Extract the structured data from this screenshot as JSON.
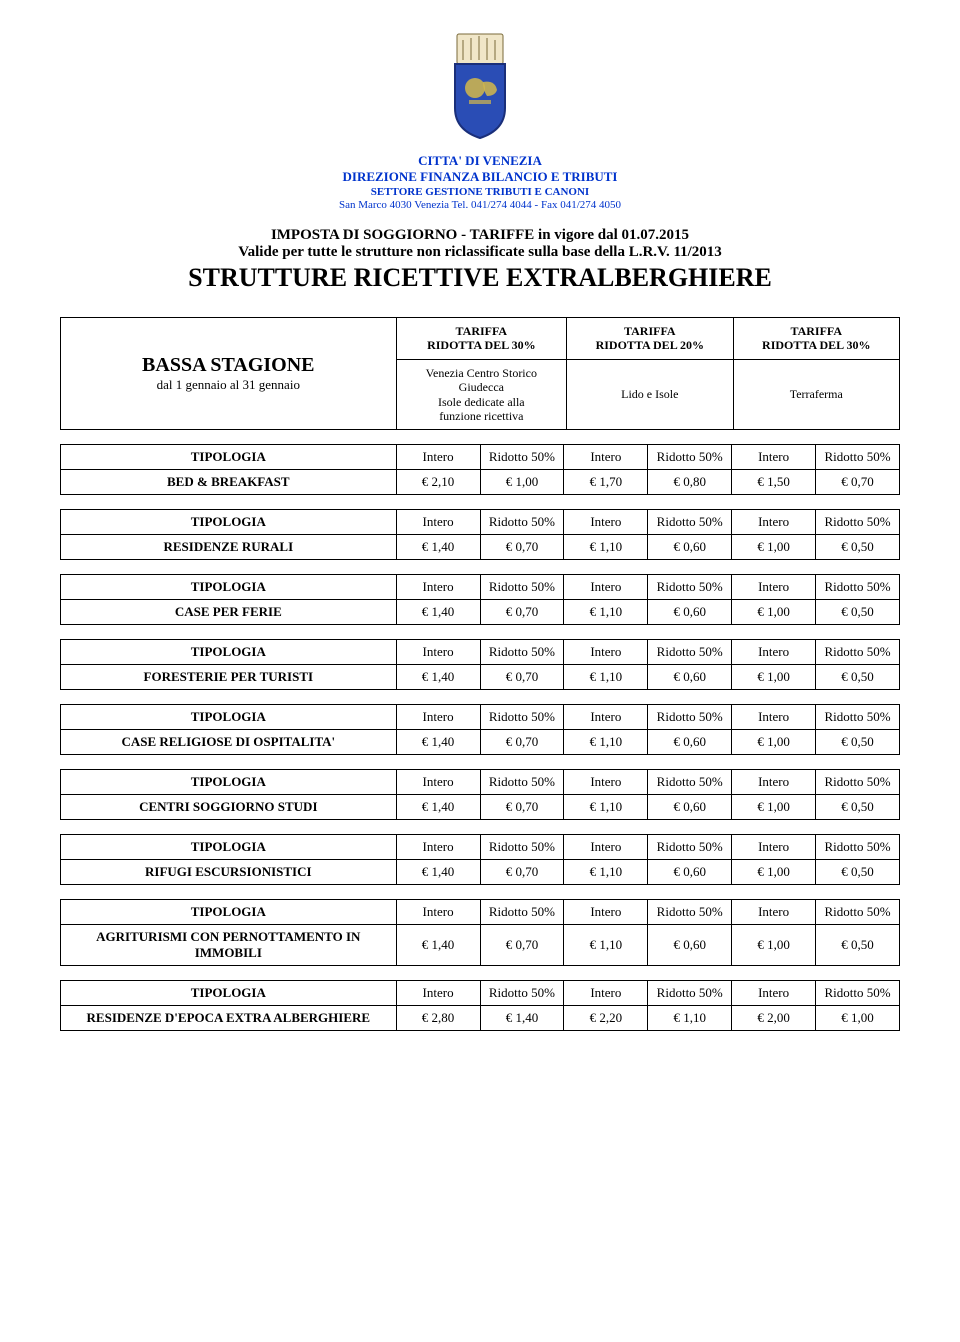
{
  "colors": {
    "header_text": "#0033cc",
    "body_text": "#000000",
    "border": "#000000",
    "background": "#ffffff"
  },
  "header": {
    "line1": "CITTA' DI VENEZIA",
    "line2": "DIREZIONE FINANZA BILANCIO E TRIBUTI",
    "line3": "SETTORE GESTIONE TRIBUTI E CANONI",
    "line4": "San Marco 4030 Venezia  Tel. 041/274 4044 - Fax 041/274 4050"
  },
  "subtitle": {
    "line1": "IMPOSTA DI SOGGIORNO - TARIFFE in vigore dal 01.07.2015",
    "line2": "Valide per tutte le strutture non riclassificate sulla base della L.R.V. 11/2013",
    "doc_title": "STRUTTURE RICETTIVE EXTRALBERGHIERE"
  },
  "season": {
    "title": "BASSA STAGIONE",
    "range": "dal 1 gennaio al 31 gennaio",
    "tariff_label": "TARIFFA",
    "col1_discount": "RIDOTTA DEL 30%",
    "col2_discount": "RIDOTTA DEL 20%",
    "col3_discount": "RIDOTTA DEL 30%",
    "zone1_l1": "Venezia Centro Storico",
    "zone1_l2": "Giudecca",
    "zone1_l3": "Isole dedicate alla",
    "zone1_l4": "funzione ricettiva",
    "zone2": "Lido e Isole",
    "zone3": "Terraferma"
  },
  "columns": {
    "tipologia": "TIPOLOGIA",
    "intero": "Intero",
    "ridotto": "Ridotto 50%"
  },
  "rows": [
    {
      "name": "BED & BREAKFAST",
      "v": [
        "€ 2,10",
        "€ 1,00",
        "€ 1,70",
        "€ 0,80",
        "€ 1,50",
        "€ 0,70"
      ]
    },
    {
      "name": "RESIDENZE RURALI",
      "v": [
        "€ 1,40",
        "€ 0,70",
        "€ 1,10",
        "€ 0,60",
        "€ 1,00",
        "€ 0,50"
      ]
    },
    {
      "name": "CASE PER FERIE",
      "v": [
        "€ 1,40",
        "€ 0,70",
        "€ 1,10",
        "€ 0,60",
        "€ 1,00",
        "€ 0,50"
      ]
    },
    {
      "name": "FORESTERIE PER TURISTI",
      "v": [
        "€ 1,40",
        "€ 0,70",
        "€ 1,10",
        "€ 0,60",
        "€ 1,00",
        "€ 0,50"
      ]
    },
    {
      "name": "CASE RELIGIOSE DI OSPITALITA'",
      "v": [
        "€ 1,40",
        "€ 0,70",
        "€ 1,10",
        "€ 0,60",
        "€ 1,00",
        "€ 0,50"
      ]
    },
    {
      "name": "CENTRI SOGGIORNO STUDI",
      "v": [
        "€ 1,40",
        "€ 0,70",
        "€ 1,10",
        "€ 0,60",
        "€ 1,00",
        "€ 0,50"
      ]
    },
    {
      "name": "RIFUGI ESCURSIONISTICI",
      "v": [
        "€ 1,40",
        "€ 0,70",
        "€ 1,10",
        "€ 0,60",
        "€ 1,00",
        "€ 0,50"
      ]
    },
    {
      "name": "AGRITURISMI CON PERNOTTAMENTO IN IMMOBILI",
      "v": [
        "€ 1,40",
        "€ 0,70",
        "€ 1,10",
        "€ 0,60",
        "€ 1,00",
        "€ 0,50"
      ]
    },
    {
      "name": "RESIDENZE D'EPOCA EXTRA ALBERGHIERE",
      "v": [
        "€ 2,80",
        "€ 1,40",
        "€ 2,20",
        "€ 1,10",
        "€ 2,00",
        "€ 1,00"
      ]
    }
  ]
}
